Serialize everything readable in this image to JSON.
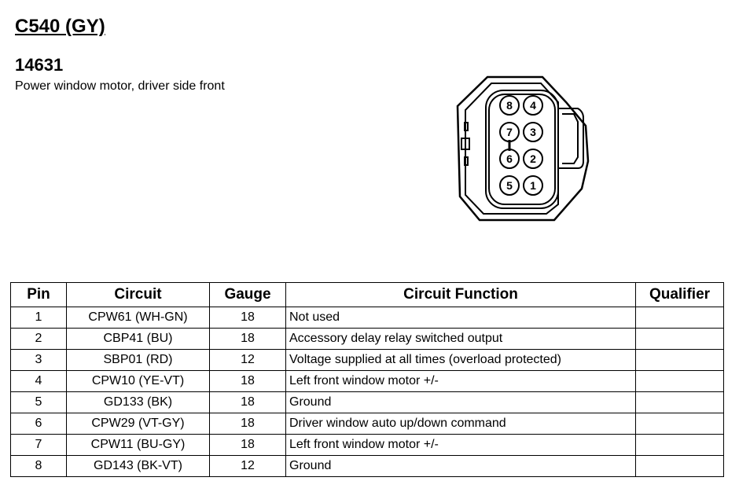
{
  "header": {
    "connector": "C540 (GY)",
    "part_number": "14631",
    "description": "Power window motor, driver side front"
  },
  "connector_pins": [
    "8",
    "4",
    "7",
    "3",
    "6",
    "2",
    "5",
    "1"
  ],
  "table": {
    "columns": [
      "Pin",
      "Circuit",
      "Gauge",
      "Circuit Function",
      "Qualifier"
    ],
    "rows": [
      {
        "pin": "1",
        "circuit": "CPW61 (WH-GN)",
        "gauge": "18",
        "function": "Not used",
        "qualifier": ""
      },
      {
        "pin": "2",
        "circuit": "CBP41 (BU)",
        "gauge": "18",
        "function": "Accessory delay relay switched output",
        "qualifier": ""
      },
      {
        "pin": "3",
        "circuit": "SBP01 (RD)",
        "gauge": "12",
        "function": "Voltage supplied at all times (overload protected)",
        "qualifier": ""
      },
      {
        "pin": "4",
        "circuit": "CPW10 (YE-VT)",
        "gauge": "18",
        "function": "Left front window motor +/-",
        "qualifier": ""
      },
      {
        "pin": "5",
        "circuit": "GD133 (BK)",
        "gauge": "18",
        "function": "Ground",
        "qualifier": ""
      },
      {
        "pin": "6",
        "circuit": "CPW29 (VT-GY)",
        "gauge": "18",
        "function": "Driver window auto up/down command",
        "qualifier": ""
      },
      {
        "pin": "7",
        "circuit": "CPW11 (BU-GY)",
        "gauge": "18",
        "function": "Left front window motor +/-",
        "qualifier": ""
      },
      {
        "pin": "8",
        "circuit": "GD143 (BK-VT)",
        "gauge": "12",
        "function": "Ground",
        "qualifier": ""
      }
    ]
  }
}
